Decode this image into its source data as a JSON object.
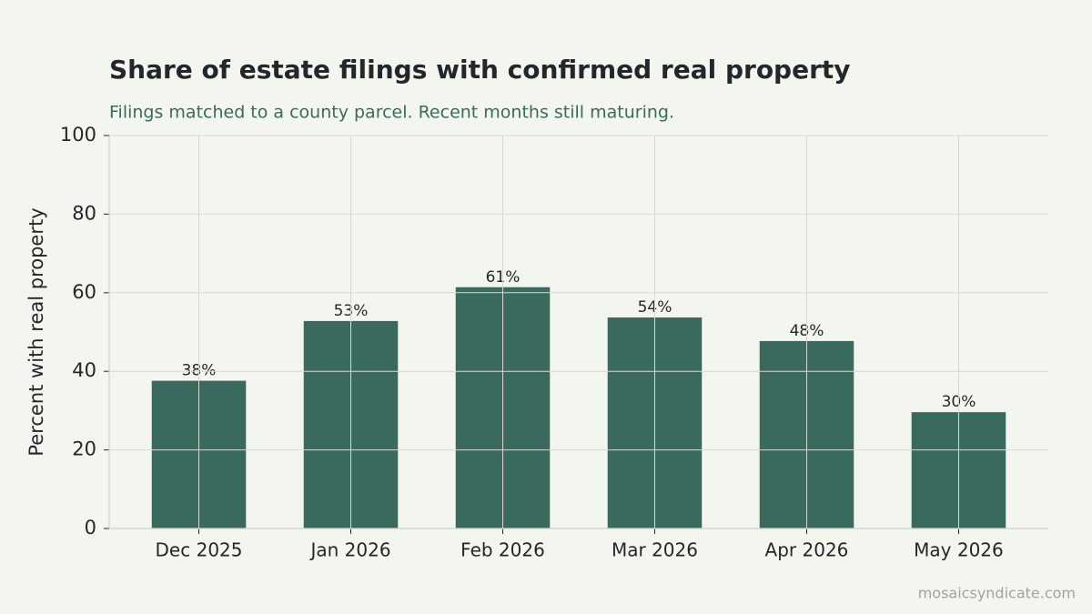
{
  "chart_data": {
    "type": "bar",
    "title": "Share of estate filings with confirmed real property",
    "subtitle": "Filings matched to a county parcel. Recent months still maturing.",
    "y_label": "Percent with real property",
    "categories": [
      "Dec 2025",
      "Jan 2026",
      "Feb 2026",
      "Mar 2026",
      "Apr 2026",
      "May 2026"
    ],
    "values": [
      37.6,
      52.8,
      61.4,
      53.7,
      47.7,
      29.6
    ],
    "value_labels": [
      "38%",
      "53%",
      "61%",
      "54%",
      "48%",
      "30%"
    ],
    "color": "#3a6a5d",
    "ylim": [
      0,
      100
    ],
    "yticks": [
      0,
      20,
      40,
      60,
      80,
      100
    ],
    "grid": true,
    "watermark": "mosaicsyndicate.com"
  }
}
